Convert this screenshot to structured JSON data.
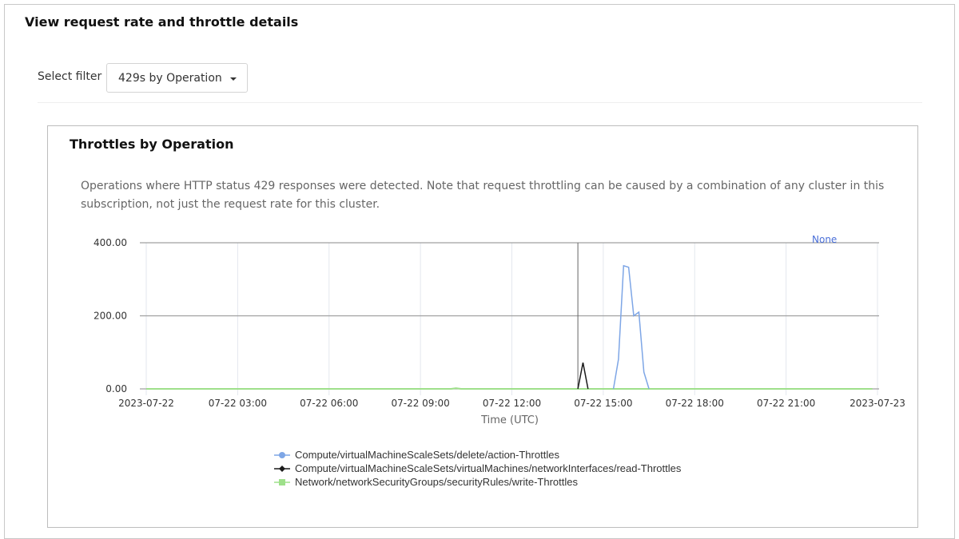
{
  "page": {
    "title": "View request rate and throttle details",
    "filter_label": "Select filter",
    "filter_value": "429s by Operation"
  },
  "card": {
    "title": "Throttles by Operation",
    "description": "Operations where HTTP status 429 responses were detected. Note that request throttling can be caused by a combination of any cluster in this subscription, not just the request rate for this cluster."
  },
  "chart_data": {
    "type": "line",
    "xlabel": "Time (UTC)",
    "ylabel": "",
    "ylim": [
      0,
      400
    ],
    "xlim": [
      "2023-07-22 00:00",
      "2023-07-23 00:00"
    ],
    "y_ticks": [
      "0.00",
      "200.00",
      "400.00"
    ],
    "x_ticks": [
      "2023-07-22",
      "07-22 03:00",
      "07-22 06:00",
      "07-22 09:00",
      "07-22 12:00",
      "07-22 15:00",
      "07-22 18:00",
      "07-22 21:00",
      "2023-07-23"
    ],
    "grid": true,
    "legend_placement": "bottom",
    "top_right_label": "None",
    "cursor_time": "2023-07-22 14:10",
    "series": [
      {
        "name": "Compute/virtualMachineScaleSets/delete/action-Throttles",
        "color": "#7ea6e6",
        "marker": "circle",
        "x": [
          "2023-07-22 15:20",
          "2023-07-22 15:30",
          "2023-07-22 15:40",
          "2023-07-22 15:50",
          "2023-07-22 16:00",
          "2023-07-22 16:10",
          "2023-07-22 16:20",
          "2023-07-22 16:30"
        ],
        "y": [
          0,
          81,
          337,
          333,
          200,
          210,
          46,
          0
        ]
      },
      {
        "name": "Compute/virtualMachineScaleSets/virtualMachines/networkInterfaces/read-Throttles",
        "color": "#1a1a1a",
        "marker": "diamond",
        "x": [
          "2023-07-22 14:10",
          "2023-07-22 14:20",
          "2023-07-22 14:30"
        ],
        "y": [
          0,
          72,
          0
        ]
      },
      {
        "name": "Network/networkSecurityGroups/securityRules/write-Throttles",
        "color": "#9ee08a",
        "marker": "square",
        "x": [
          "2023-07-22 00:00",
          "2023-07-22 10:00",
          "2023-07-22 10:10",
          "2023-07-22 10:20",
          "2023-07-22 23:50"
        ],
        "y": [
          0,
          0,
          2,
          0,
          0
        ]
      }
    ]
  }
}
